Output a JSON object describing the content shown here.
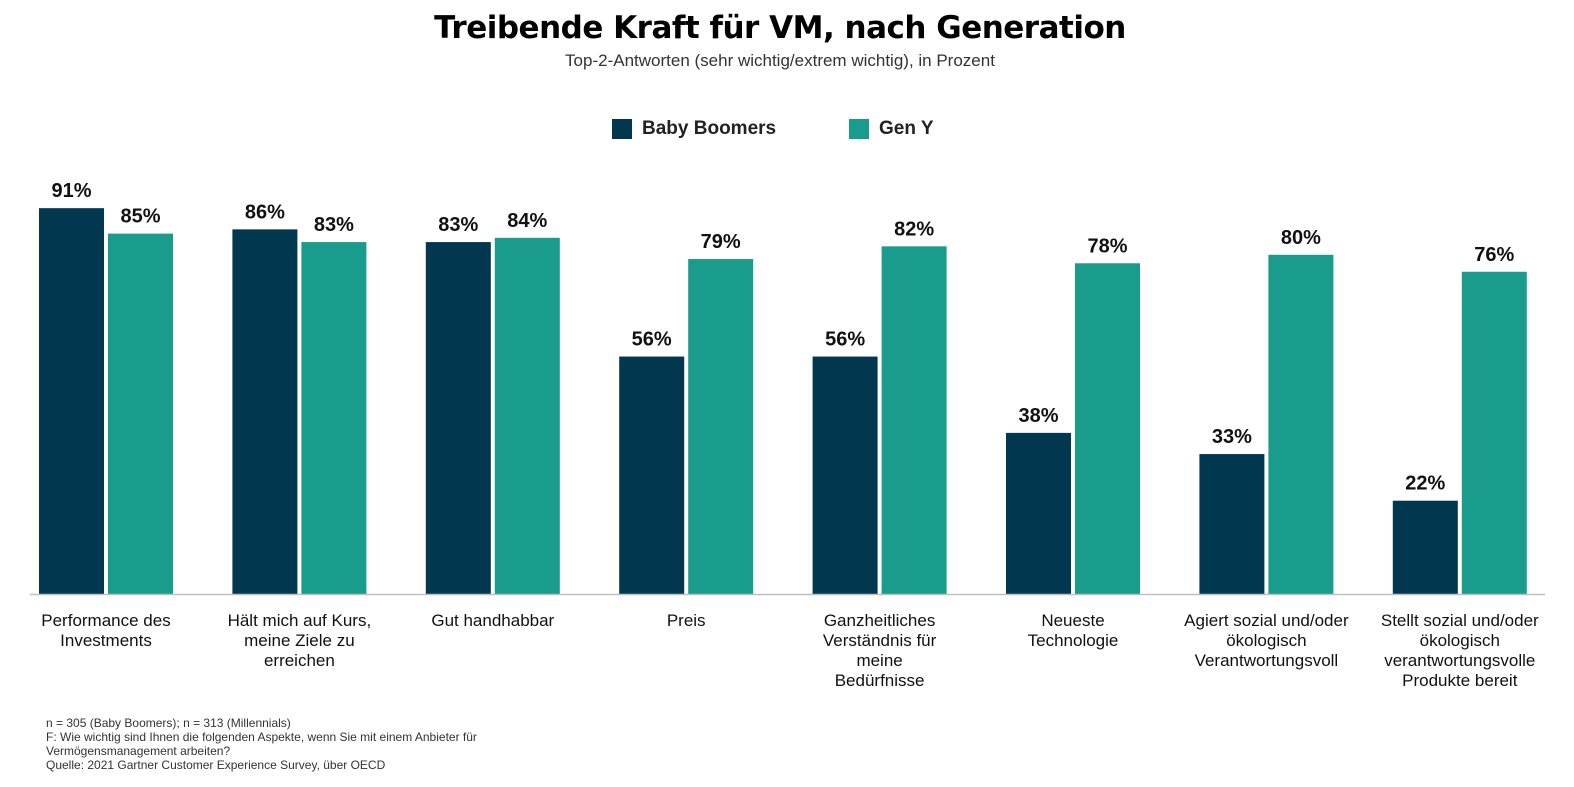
{
  "chart_data": {
    "type": "bar",
    "title": "Treibende Kraft für VM, nach Generation",
    "subtitle": "Top-2-Antworten (sehr wichtig/extrem wichtig), in Prozent",
    "categories": [
      [
        "Performance des",
        "Investments"
      ],
      [
        "Hält mich auf Kurs,",
        "meine Ziele zu",
        "erreichen"
      ],
      [
        "Gut handhabbar"
      ],
      [
        "Preis"
      ],
      [
        "Ganzheitliches",
        "Verständnis für",
        "meine",
        "Bedürfnisse"
      ],
      [
        "Neueste",
        "Technologie"
      ],
      [
        "Agiert sozial und/oder",
        "ökologisch",
        "Verantwortungsvoll"
      ],
      [
        "Stellt sozial und/oder",
        "ökologisch",
        "verantwortungsvolle",
        "Produkte bereit"
      ]
    ],
    "series": [
      {
        "name": "Baby Boomers",
        "color": "#023750",
        "values": [
          91,
          86,
          83,
          56,
          56,
          38,
          33,
          22
        ],
        "labels": [
          "91%",
          "86%",
          "83%",
          "56%",
          "56%",
          "38%",
          "33%",
          "22%"
        ]
      },
      {
        "name": "Gen Y",
        "color": "#199C8C",
        "values": [
          85,
          83,
          84,
          79,
          82,
          78,
          80,
          76
        ],
        "labels": [
          "85%",
          "83%",
          "84%",
          "79%",
          "82%",
          "78%",
          "80%",
          "76%"
        ]
      }
    ],
    "ylim": [
      0,
      100
    ],
    "xlabel": "",
    "ylabel": "",
    "grid": false,
    "legend_position": "top-center",
    "baseline_color": "#bfbfbf"
  },
  "footnotes": [
    "n = 305 (Baby Boomers); n = 313 (Millennials)",
    "F: Wie wichtig sind Ihnen die folgenden Aspekte, wenn Sie mit einem Anbieter für",
    "Vermögensmanagement arbeiten?",
    "Quelle: 2021 Gartner Customer Experience Survey, über OECD"
  ]
}
